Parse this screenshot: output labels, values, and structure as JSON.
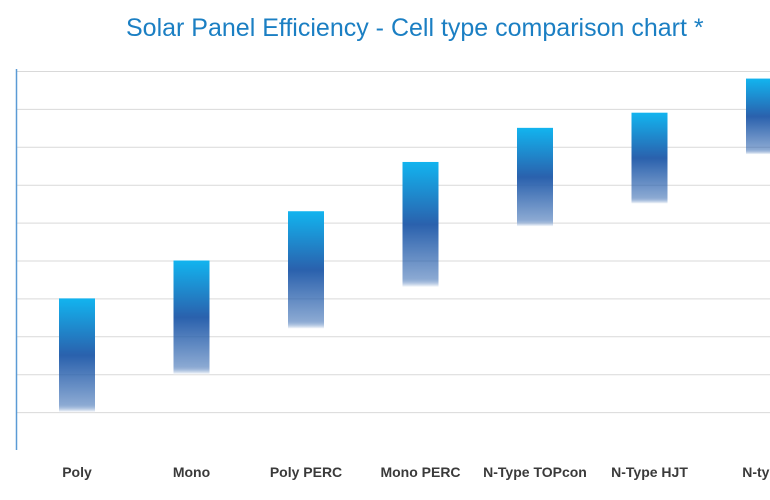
{
  "chart_data": {
    "type": "bar",
    "subtype": "floating-range",
    "title": "Solar Panel Efficiency - Cell type comparison chart *",
    "categories": [
      "Poly",
      "Mono",
      "Poly PERC",
      "Mono PERC",
      "N-Type TOPcon",
      "N-Type HJT",
      "N-type"
    ],
    "series": [
      {
        "name": "Efficiency range",
        "low": [
          1.0,
          2.0,
          3.2,
          4.3,
          5.9,
          6.5,
          7.8
        ],
        "high": [
          4.0,
          5.0,
          6.3,
          7.6,
          8.5,
          8.9,
          9.8
        ]
      }
    ],
    "xlabel": "",
    "ylabel": "",
    "ylim": [
      0,
      10
    ],
    "y_gridlines": [
      1,
      2,
      3,
      4,
      5,
      6,
      7,
      8,
      9,
      10
    ],
    "grid": true,
    "legend": "none",
    "colors": {
      "title": "#1b7fc3",
      "bar_top": "#12b4ef",
      "bar_mid": "#2a61ad",
      "bar_bottom": "#ffffff",
      "grid": "#d9d9d9",
      "axis": "#5b9bd5",
      "tick_label": "#3a3a3a"
    }
  }
}
